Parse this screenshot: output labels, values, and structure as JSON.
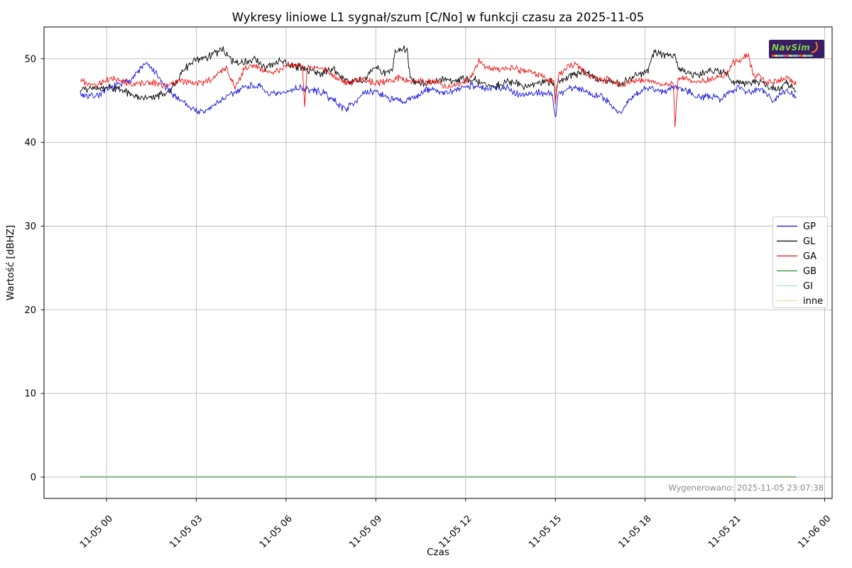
{
  "watermark": "Wygenerowano: 2025-11-05 23:07:38",
  "logo": {
    "text": "NavSim"
  },
  "chart_data": {
    "type": "line",
    "title": "Wykresy liniowe L1 sygnał/szum [C/No] w funkcji czasu za 2025-11-05",
    "xlabel": "Czas",
    "ylabel": "Wartość [dBHZ]",
    "grid": true,
    "legend_position": "center-right",
    "xlim_hours": [
      -2.09,
      24.25
    ],
    "ylim": [
      -2.55,
      53.8
    ],
    "y_ticks": [
      0,
      10,
      20,
      30,
      40,
      50
    ],
    "x_ticks": [
      {
        "label": "11-05 00",
        "hour": 0
      },
      {
        "label": "11-05 03",
        "hour": 3
      },
      {
        "label": "11-05 06",
        "hour": 6
      },
      {
        "label": "11-05 09",
        "hour": 9
      },
      {
        "label": "11-05 12",
        "hour": 12
      },
      {
        "label": "11-05 15",
        "hour": 15
      },
      {
        "label": "11-05 18",
        "hour": 18
      },
      {
        "label": "11-05 21",
        "hour": 21
      },
      {
        "label": "11-06 00",
        "hour": 24
      }
    ],
    "time_span_hours": [
      -0.88,
      23.05
    ],
    "grid_color": "#b0b0b0",
    "noise": {
      "seed": 7,
      "points_per_hour": 40
    },
    "series": [
      {
        "name": "GP",
        "color": "#1212dd",
        "width": 0.9,
        "noise_amp": 0.36,
        "anchors": [
          [
            -0.88,
            45.8
          ],
          [
            -0.5,
            45.9
          ],
          [
            0,
            46.1
          ],
          [
            0.5,
            46.7
          ],
          [
            0.9,
            47.8
          ],
          [
            1.3,
            49.2
          ],
          [
            1.6,
            48.4
          ],
          [
            2.0,
            46.9
          ],
          [
            2.4,
            45.4
          ],
          [
            2.8,
            44.2
          ],
          [
            3.2,
            43.6
          ],
          [
            3.6,
            44.1
          ],
          [
            4.0,
            45.1
          ],
          [
            4.5,
            46.7
          ],
          [
            5.0,
            46.9
          ],
          [
            5.5,
            46.1
          ],
          [
            6.0,
            45.8
          ],
          [
            6.5,
            46.4
          ],
          [
            7.0,
            46.0
          ],
          [
            7.5,
            45.2
          ],
          [
            8.0,
            44.4
          ],
          [
            8.5,
            45.6
          ],
          [
            9.0,
            46.3
          ],
          [
            9.5,
            44.9
          ],
          [
            9.9,
            44.4
          ],
          [
            10.3,
            45.6
          ],
          [
            10.8,
            46.4
          ],
          [
            11.3,
            46.2
          ],
          [
            11.8,
            46.5
          ],
          [
            12.3,
            46.6
          ],
          [
            12.8,
            46.2
          ],
          [
            13.3,
            46.4
          ],
          [
            13.8,
            46.1
          ],
          [
            14.4,
            46.0
          ],
          [
            14.9,
            45.9
          ],
          [
            15.0,
            42.8
          ],
          [
            15.1,
            45.9
          ],
          [
            15.5,
            46.2
          ],
          [
            16.0,
            46.0
          ],
          [
            16.5,
            45.7
          ],
          [
            17.0,
            44.1
          ],
          [
            17.2,
            43.8
          ],
          [
            17.45,
            45.4
          ],
          [
            18.0,
            46.3
          ],
          [
            18.5,
            46.0
          ],
          [
            19.0,
            46.4
          ],
          [
            19.5,
            46.1
          ],
          [
            20.0,
            45.7
          ],
          [
            20.5,
            45.3
          ],
          [
            21.1,
            46.8
          ],
          [
            21.5,
            45.5
          ],
          [
            21.9,
            46.3
          ],
          [
            22.3,
            45.1
          ],
          [
            22.6,
            46.2
          ],
          [
            23.05,
            45.6
          ]
        ]
      },
      {
        "name": "GL",
        "color": "#000000",
        "width": 0.9,
        "noise_amp": 0.38,
        "anchors": [
          [
            -0.88,
            46.3
          ],
          [
            -0.4,
            46.5
          ],
          [
            0.1,
            46.3
          ],
          [
            0.6,
            45.9
          ],
          [
            1.1,
            45.5
          ],
          [
            1.6,
            45.4
          ],
          [
            2.1,
            46.6
          ],
          [
            2.6,
            48.6
          ],
          [
            3.1,
            49.9
          ],
          [
            3.6,
            50.4
          ],
          [
            3.9,
            50.8
          ],
          [
            4.2,
            49.7
          ],
          [
            4.6,
            49.9
          ],
          [
            5.0,
            50.1
          ],
          [
            5.3,
            49.0
          ],
          [
            5.8,
            49.9
          ],
          [
            6.2,
            48.7
          ],
          [
            6.7,
            48.6
          ],
          [
            7.2,
            48.3
          ],
          [
            7.6,
            48.8
          ],
          [
            8.1,
            47.6
          ],
          [
            8.6,
            47.3
          ],
          [
            9.0,
            48.8
          ],
          [
            9.35,
            48.3
          ],
          [
            9.55,
            48.6
          ],
          [
            9.65,
            50.8
          ],
          [
            10.05,
            50.9
          ],
          [
            10.15,
            47.6
          ],
          [
            10.7,
            47.3
          ],
          [
            11.3,
            47.6
          ],
          [
            11.9,
            47.4
          ],
          [
            12.5,
            47.0
          ],
          [
            13.0,
            46.8
          ],
          [
            13.5,
            47.3
          ],
          [
            14.0,
            47.2
          ],
          [
            14.6,
            47.1
          ],
          [
            14.95,
            47.0
          ],
          [
            15.0,
            45.2
          ],
          [
            15.1,
            47.3
          ],
          [
            15.7,
            47.9
          ],
          [
            16.2,
            48.3
          ],
          [
            16.7,
            47.5
          ],
          [
            17.2,
            47.2
          ],
          [
            17.7,
            48.0
          ],
          [
            18.1,
            48.2
          ],
          [
            18.25,
            50.3
          ],
          [
            19.0,
            50.5
          ],
          [
            19.15,
            48.6
          ],
          [
            19.7,
            48.4
          ],
          [
            20.1,
            48.9
          ],
          [
            20.6,
            48.3
          ],
          [
            21.0,
            47.2
          ],
          [
            21.5,
            46.8
          ],
          [
            22.0,
            47.0
          ],
          [
            22.4,
            46.6
          ],
          [
            22.7,
            47.3
          ],
          [
            23.05,
            46.4
          ]
        ]
      },
      {
        "name": "GA",
        "color": "#ee0f0f",
        "width": 0.9,
        "noise_amp": 0.33,
        "anchors": [
          [
            -0.88,
            47.6
          ],
          [
            -0.4,
            47.3
          ],
          [
            0.1,
            47.5
          ],
          [
            0.6,
            47.1
          ],
          [
            1.1,
            46.8
          ],
          [
            1.6,
            47.0
          ],
          [
            2.1,
            47.2
          ],
          [
            2.6,
            47.4
          ],
          [
            3.1,
            47.3
          ],
          [
            3.6,
            47.4
          ],
          [
            4.0,
            48.7
          ],
          [
            4.3,
            46.5
          ],
          [
            4.6,
            48.8
          ],
          [
            5.0,
            49.2
          ],
          [
            5.5,
            48.6
          ],
          [
            6.0,
            49.0
          ],
          [
            6.4,
            49.2
          ],
          [
            6.55,
            48.9
          ],
          [
            6.62,
            44.2
          ],
          [
            6.7,
            48.9
          ],
          [
            7.2,
            48.6
          ],
          [
            7.7,
            47.8
          ],
          [
            8.1,
            47.4
          ],
          [
            8.6,
            47.6
          ],
          [
            9.1,
            47.3
          ],
          [
            9.6,
            47.2
          ],
          [
            10.1,
            47.4
          ],
          [
            10.6,
            47.2
          ],
          [
            11.1,
            47.3
          ],
          [
            11.6,
            47.0
          ],
          [
            12.1,
            47.2
          ],
          [
            12.45,
            49.6
          ],
          [
            12.7,
            48.9
          ],
          [
            13.1,
            48.3
          ],
          [
            13.6,
            49.0
          ],
          [
            14.1,
            48.6
          ],
          [
            14.6,
            48.0
          ],
          [
            14.95,
            47.6
          ],
          [
            15.0,
            44.6
          ],
          [
            15.1,
            48.2
          ],
          [
            15.6,
            49.0
          ],
          [
            16.1,
            48.0
          ],
          [
            16.6,
            47.4
          ],
          [
            17.1,
            47.2
          ],
          [
            17.6,
            47.6
          ],
          [
            18.1,
            47.3
          ],
          [
            18.6,
            46.9
          ],
          [
            18.95,
            46.8
          ],
          [
            19.0,
            41.3
          ],
          [
            19.1,
            47.3
          ],
          [
            19.6,
            47.4
          ],
          [
            20.1,
            47.6
          ],
          [
            20.6,
            47.9
          ],
          [
            20.95,
            49.8
          ],
          [
            21.45,
            50.1
          ],
          [
            21.6,
            47.9
          ],
          [
            22.0,
            47.3
          ],
          [
            22.4,
            47.0
          ],
          [
            22.7,
            47.8
          ],
          [
            23.05,
            47.1
          ]
        ]
      },
      {
        "name": "GB",
        "color": "#2f8f2f",
        "width": 1.0,
        "noise_amp": 0,
        "anchors": [
          [
            -0.88,
            0
          ],
          [
            23.05,
            0
          ]
        ]
      },
      {
        "name": "GI",
        "color": "#add8e6",
        "width": 1.0,
        "noise_amp": 0,
        "anchors": [
          [
            -0.88,
            0
          ],
          [
            23.05,
            0
          ]
        ]
      },
      {
        "name": "inne",
        "color": "#f5d8b0",
        "width": 1.0,
        "noise_amp": 0,
        "anchors": [
          [
            -0.88,
            0
          ],
          [
            23.05,
            0
          ]
        ]
      }
    ]
  }
}
